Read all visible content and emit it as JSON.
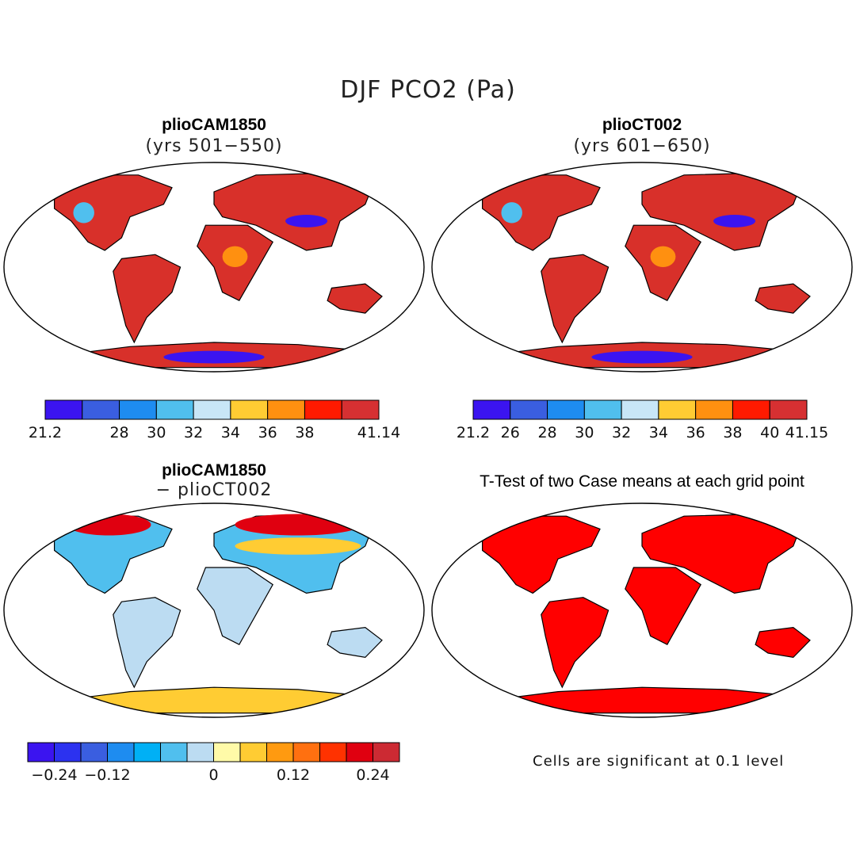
{
  "figure": {
    "title": "DJF PCO2 (Pa)"
  },
  "panels": [
    {
      "id": "panel-1",
      "title": "plioCAM1850",
      "subtitle": "(yrs 501−550)",
      "colorbar": {
        "colors": [
          "#3b14f0",
          "#3a5ee0",
          "#1e8cf0",
          "#50bfee",
          "#c8e6f7",
          "#ffcc33",
          "#ff9010",
          "#ff1a00",
          "#d63032"
        ],
        "tick_labels": [
          "21.2",
          "",
          "28",
          "30",
          "32",
          "34",
          "36",
          "38",
          "",
          "41.14"
        ]
      },
      "fields": [
        {
          "color": "#d8302a",
          "share": 0.55
        },
        {
          "color": "#ff1a00",
          "share": 0.2
        },
        {
          "color": "#ff9010",
          "share": 0.1
        },
        {
          "color": "#50bfee",
          "share": 0.06
        },
        {
          "color": "#3b14f0",
          "share": 0.05
        }
      ]
    },
    {
      "id": "panel-2",
      "title": "plioCT002",
      "subtitle": "(yrs 601−650)",
      "colorbar": {
        "colors": [
          "#3b14f0",
          "#3a5ee0",
          "#1e8cf0",
          "#50bfee",
          "#c8e6f7",
          "#ffcc33",
          "#ff9010",
          "#ff1a00",
          "#d63032"
        ],
        "tick_labels": [
          "21.2",
          "26",
          "28",
          "30",
          "32",
          "34",
          "36",
          "38",
          "40",
          "41.15"
        ]
      },
      "fields": [
        {
          "color": "#d8302a",
          "share": 0.5
        },
        {
          "color": "#ff1a00",
          "share": 0.22
        },
        {
          "color": "#ffcc33",
          "share": 0.12
        },
        {
          "color": "#50bfee",
          "share": 0.06
        },
        {
          "color": "#3b14f0",
          "share": 0.05
        }
      ]
    },
    {
      "id": "panel-3",
      "title": "plioCAM1850",
      "subtitle": "− plioCT002",
      "colorbar": {
        "colors": [
          "#3b14f0",
          "#2c32f0",
          "#3a5ee0",
          "#1e8cf0",
          "#00b0f5",
          "#50bfee",
          "#bcdcf2",
          "#fffaa8",
          "#ffcc33",
          "#ff9a10",
          "#ff7010",
          "#ff3200",
          "#e00010",
          "#cc2a33"
        ],
        "tick_labels": [
          "",
          "−0.24",
          "",
          "−0.12",
          "",
          "",
          "",
          "0",
          "",
          "",
          "0.12",
          "",
          "",
          "0.24",
          ""
        ]
      },
      "fields": [
        {
          "color": "#bcdcf2",
          "share": 0.45
        },
        {
          "color": "#50bfee",
          "share": 0.25
        },
        {
          "color": "#ff3200",
          "share": 0.15
        },
        {
          "color": "#ffcc33",
          "share": 0.1
        }
      ]
    },
    {
      "id": "panel-4",
      "title": "T-Test of two Case means at each grid point",
      "subtitle": "",
      "note": "Cells are significant at 0.1 level",
      "fields": [
        {
          "color": "#ff0000",
          "share": 1.0
        }
      ]
    }
  ]
}
